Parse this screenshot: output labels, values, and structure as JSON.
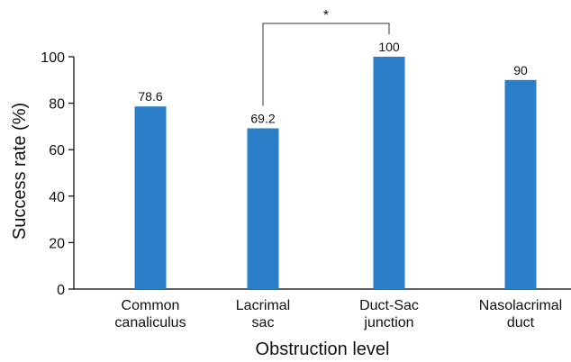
{
  "chart_data": {
    "type": "bar",
    "categories": [
      [
        "Common",
        "canaliculus"
      ],
      [
        "Lacrimal",
        "sac"
      ],
      [
        "Duct-Sac",
        "junction"
      ],
      [
        "Nasolacrimal",
        "duct"
      ]
    ],
    "values": [
      78.6,
      69.2,
      100,
      90
    ],
    "value_labels": [
      "78.6",
      "69.2",
      "100",
      "90"
    ],
    "xlabel": "Obstruction level",
    "ylabel": "Success rate (%)",
    "ylim": [
      0,
      100
    ],
    "yticks": [
      0,
      20,
      40,
      60,
      80,
      100
    ],
    "bar_color": "#2a7fc8",
    "grid": false,
    "significance": [
      {
        "from": 1,
        "to": 2,
        "label": "*"
      }
    ]
  }
}
